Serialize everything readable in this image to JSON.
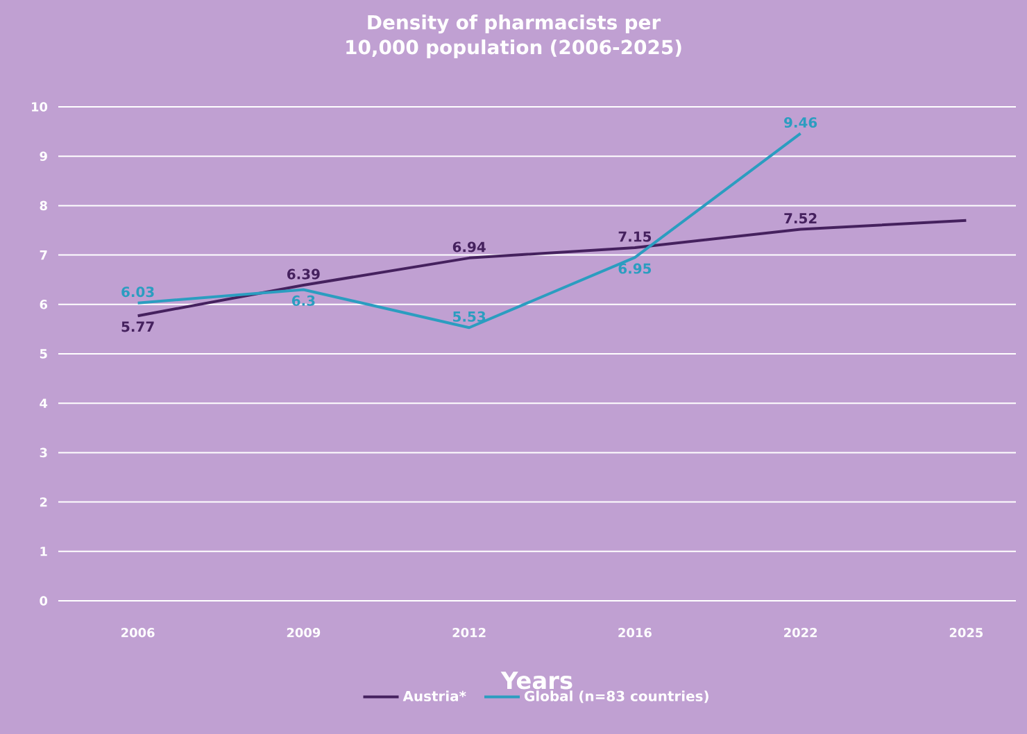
{
  "chart_data": {
    "type": "line",
    "title": "Density of pharmacists per 10,000 population (2006-2025)",
    "xlabel": "Years",
    "categories": [
      "2006",
      "2009",
      "2012",
      "2016",
      "2022",
      "2025"
    ],
    "series": [
      {
        "name": "Austria*",
        "color": "#45215e",
        "values": [
          5.77,
          6.39,
          6.94,
          7.15,
          7.52,
          7.7
        ],
        "value_labels": [
          "5.77",
          "6.39",
          "6.94",
          "7.15",
          "7.52",
          null
        ]
      },
      {
        "name": "Global (n=83 countries)",
        "color": "#2b9dc0",
        "values": [
          6.03,
          6.3,
          5.53,
          6.95,
          9.46,
          null
        ],
        "value_labels": [
          "6.03",
          "6.3",
          "5.53",
          "6.95",
          "9.46",
          null
        ]
      }
    ],
    "ylim": [
      0,
      10
    ],
    "yticks": [
      0,
      1,
      2,
      3,
      4,
      5,
      6,
      7,
      8,
      9,
      10
    ],
    "grid": "y",
    "legend": "bottom"
  }
}
